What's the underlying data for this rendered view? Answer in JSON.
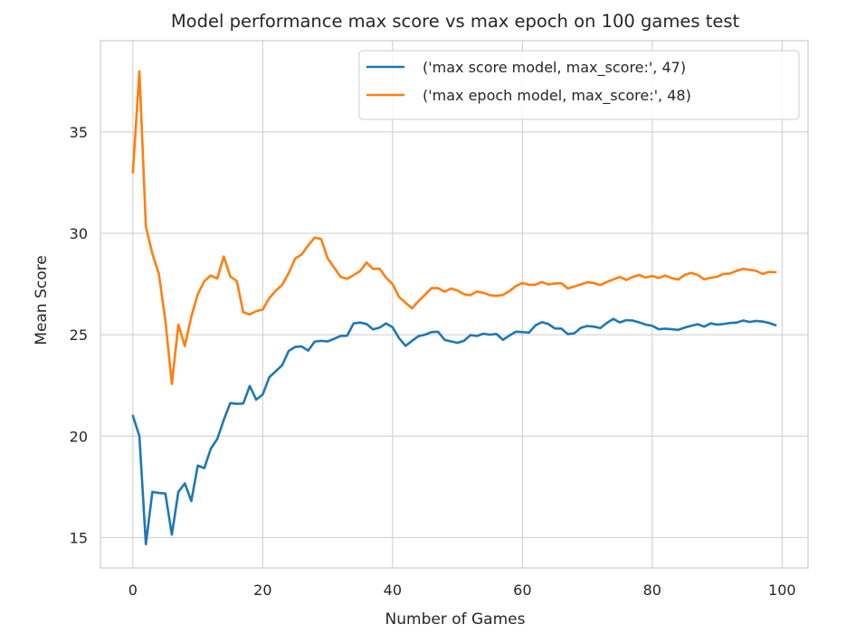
{
  "chart_data": {
    "type": "line",
    "title": "Model performance max score vs max epoch on 100 games test",
    "xlabel": "Number of Games",
    "ylabel": "Mean Score",
    "xlim": [
      -5,
      104
    ],
    "ylim": [
      13.5,
      39.5
    ],
    "xticks": [
      0,
      20,
      40,
      60,
      80,
      100
    ],
    "yticks": [
      15,
      20,
      25,
      30,
      35
    ],
    "grid": true,
    "legend_position": "top-right",
    "series": [
      {
        "name": "('max score model, max_score:', 47)",
        "color": "#1f77b4",
        "values": [
          21.0,
          20.0,
          14.67,
          17.25,
          17.2,
          17.17,
          15.14,
          17.25,
          17.67,
          16.8,
          18.55,
          18.42,
          19.38,
          19.86,
          20.8,
          21.63,
          21.59,
          21.61,
          22.47,
          21.8,
          22.05,
          22.9,
          23.2,
          23.5,
          24.2,
          24.4,
          24.42,
          24.22,
          24.66,
          24.7,
          24.67,
          24.8,
          24.94,
          24.95,
          25.56,
          25.6,
          25.53,
          25.26,
          25.35,
          25.56,
          25.37,
          24.83,
          24.45,
          24.7,
          24.93,
          25.0,
          25.13,
          25.15,
          24.75,
          24.67,
          24.6,
          24.7,
          24.98,
          24.94,
          25.05,
          25.0,
          25.04,
          24.75,
          24.96,
          25.15,
          25.13,
          25.1,
          25.46,
          25.62,
          25.53,
          25.31,
          25.3,
          25.03,
          25.07,
          25.34,
          25.43,
          25.4,
          25.33,
          25.58,
          25.78,
          25.61,
          25.72,
          25.7,
          25.61,
          25.5,
          25.44,
          25.27,
          25.3,
          25.27,
          25.24,
          25.35,
          25.44,
          25.52,
          25.4,
          25.56,
          25.5,
          25.53,
          25.58,
          25.6,
          25.7,
          25.63,
          25.68,
          25.65,
          25.58,
          25.47
        ]
      },
      {
        "name": "('max epoch model, max_score:', 48)",
        "color": "#ff7f0e",
        "values": [
          33.0,
          38.0,
          30.33,
          29.0,
          28.0,
          25.7,
          22.57,
          25.5,
          24.44,
          25.9,
          27.0,
          27.64,
          27.92,
          27.77,
          28.86,
          27.87,
          27.65,
          26.11,
          26.0,
          26.16,
          26.24,
          26.8,
          27.17,
          27.46,
          28.04,
          28.76,
          28.96,
          29.4,
          29.79,
          29.72,
          28.77,
          28.31,
          27.85,
          27.76,
          27.94,
          28.14,
          28.56,
          28.24,
          28.26,
          27.81,
          27.5,
          26.86,
          26.58,
          26.3,
          26.66,
          26.97,
          27.3,
          27.3,
          27.12,
          27.28,
          27.18,
          27.0,
          26.95,
          27.13,
          27.07,
          26.95,
          26.92,
          26.96,
          27.15,
          27.4,
          27.55,
          27.47,
          27.46,
          27.6,
          27.48,
          27.53,
          27.54,
          27.28,
          27.38,
          27.48,
          27.59,
          27.55,
          27.45,
          27.6,
          27.73,
          27.85,
          27.7,
          27.85,
          27.95,
          27.82,
          27.9,
          27.8,
          27.92,
          27.79,
          27.72,
          27.95,
          28.05,
          27.95,
          27.73,
          27.81,
          27.86,
          28.0,
          28.02,
          28.15,
          28.25,
          28.2,
          28.15,
          28.0,
          28.1,
          28.08
        ]
      }
    ]
  }
}
